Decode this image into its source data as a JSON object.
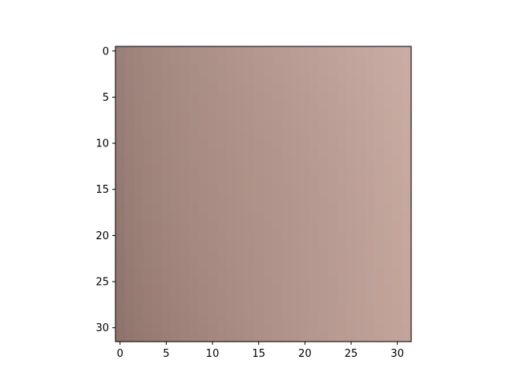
{
  "chart_data": {
    "type": "heatmap",
    "title": "",
    "xlabel": "",
    "ylabel": "",
    "rows": 32,
    "cols": 32,
    "xlim": [
      -0.5,
      31.5
    ],
    "ylim": [
      31.5,
      -0.5
    ],
    "x_ticks": [
      0,
      5,
      10,
      15,
      20,
      25,
      30
    ],
    "y_ticks": [
      0,
      5,
      10,
      15,
      20,
      25,
      30
    ],
    "x_tick_labels": [
      "0",
      "5",
      "10",
      "15",
      "20",
      "25",
      "30"
    ],
    "y_tick_labels": [
      "0",
      "5",
      "10",
      "15",
      "20",
      "25",
      "30"
    ],
    "grid": false,
    "legend": "none",
    "colors": {
      "corner_top_left": "#9a8078",
      "corner_top_right": "#c9aca3",
      "corner_bottom_left": "#8f746c",
      "corner_bottom_right": "#c2a49b",
      "center": "#ac8f87"
    }
  }
}
